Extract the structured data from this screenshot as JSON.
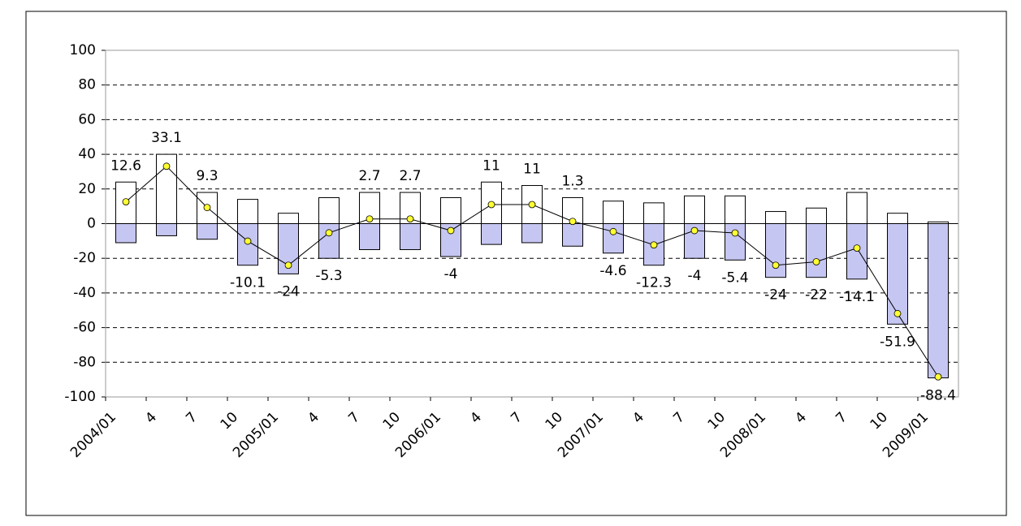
{
  "chart_data": {
    "type": "bar-line",
    "categories": [
      "2004/01",
      "4",
      "7",
      "10",
      "2005/01",
      "4",
      "7",
      "10",
      "2006/01",
      "4",
      "7",
      "10",
      "2007/01",
      "4",
      "7",
      "10",
      "2008/01",
      "4",
      "7",
      "10",
      "2009/01"
    ],
    "series": [
      {
        "type": "bar",
        "color": "#ffffff",
        "values": [
          24,
          40,
          18,
          14,
          6,
          15,
          18,
          18,
          15,
          24,
          22,
          15,
          13,
          12,
          16,
          16,
          7,
          9,
          18,
          6,
          1
        ]
      },
      {
        "type": "bar",
        "color": "#c6c6f2",
        "values": [
          -11,
          -7,
          -9,
          -24,
          -29,
          -20,
          -15,
          -15,
          -19,
          -12,
          -11,
          -13,
          -17,
          -24,
          -20,
          -21,
          -31,
          -31,
          -32,
          -58,
          -89
        ]
      },
      {
        "type": "line",
        "color": "#000000",
        "marker_color": "#ffff33",
        "values": [
          12.6,
          33.1,
          9.3,
          -10.1,
          -24,
          -5.3,
          2.7,
          2.7,
          -4,
          11,
          11,
          1.3,
          -4.6,
          -12.3,
          -4,
          -5.4,
          -24,
          -22,
          -14.1,
          -51.9,
          -88.4
        ]
      }
    ],
    "ylim": [
      -100,
      100
    ],
    "yticks": [
      -100,
      -80,
      -60,
      -40,
      -20,
      0,
      20,
      40,
      60,
      80,
      100
    ],
    "grid": true
  }
}
